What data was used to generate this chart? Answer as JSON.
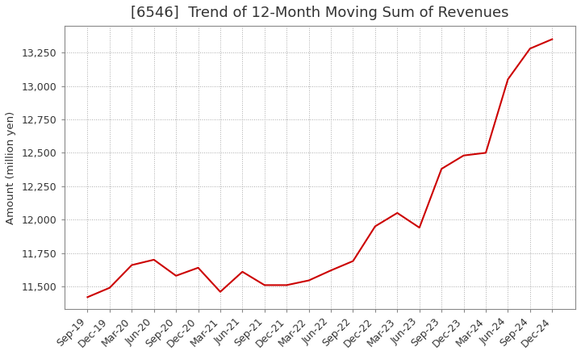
{
  "title": "[6546]  Trend of 12-Month Moving Sum of Revenues",
  "ylabel": "Amount (million yen)",
  "title_fontsize": 13,
  "label_fontsize": 9.5,
  "tick_fontsize": 9,
  "line_color": "#cc0000",
  "background_color": "#ffffff",
  "grid_color": "#aaaaaa",
  "x_labels": [
    "Sep-19",
    "Dec-19",
    "Mar-20",
    "Jun-20",
    "Sep-20",
    "Dec-20",
    "Mar-21",
    "Jun-21",
    "Sep-21",
    "Dec-21",
    "Mar-22",
    "Jun-22",
    "Sep-22",
    "Dec-22",
    "Mar-23",
    "Jun-23",
    "Sep-23",
    "Dec-23",
    "Mar-24",
    "Jun-24",
    "Sep-24",
    "Dec-24"
  ],
  "y_values": [
    11420,
    11490,
    11660,
    11700,
    11580,
    11640,
    11460,
    11610,
    11510,
    11510,
    11545,
    11620,
    11690,
    11950,
    12050,
    11940,
    12380,
    12480,
    12500,
    13050,
    13280,
    13350
  ],
  "ylim": [
    11330,
    13450
  ],
  "yticks": [
    11500,
    11750,
    12000,
    12250,
    12500,
    12750,
    13000,
    13250
  ]
}
